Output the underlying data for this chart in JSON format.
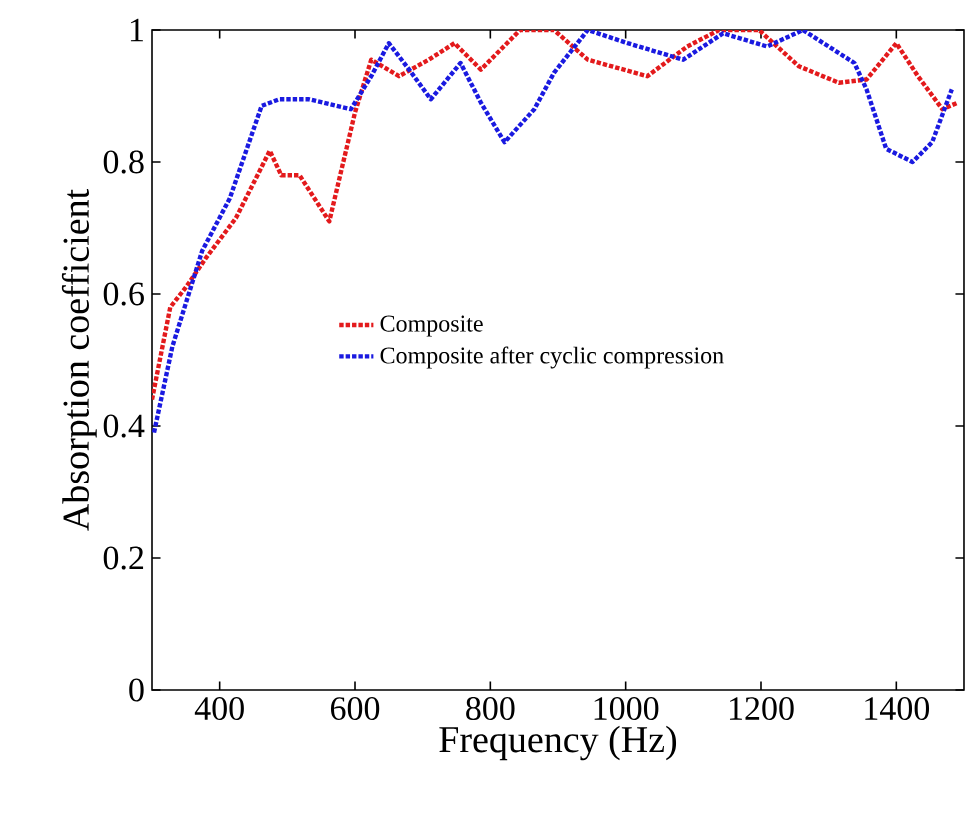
{
  "chart_data": {
    "type": "line",
    "xlabel": "Frequency (Hz)",
    "ylabel": "Absorption coefficient",
    "xlim": [
      300,
      1500
    ],
    "xticks": [
      400,
      600,
      800,
      1000,
      1200,
      1400
    ],
    "ylim": [
      0,
      1
    ],
    "yticks": [
      0,
      0.2,
      0.4,
      0.6,
      0.8,
      1
    ],
    "grid": false,
    "legend": "center",
    "line_style": "dotted",
    "marker": "none",
    "series": [
      {
        "name": "Composite",
        "color": "#e31a1c",
        "x": [
          300,
          327,
          350,
          380,
          424,
          474,
          491,
          518,
          562,
          600,
          624,
          665,
          709,
          747,
          786,
          844,
          894,
          944,
          1032,
          1091,
          1138,
          1197,
          1256,
          1315,
          1356,
          1400,
          1432,
          1468,
          1491
        ],
        "values": [
          0.44,
          0.58,
          0.61,
          0.655,
          0.715,
          0.817,
          0.78,
          0.78,
          0.71,
          0.875,
          0.955,
          0.93,
          0.955,
          0.98,
          0.94,
          1.0,
          1.0,
          0.955,
          0.93,
          0.975,
          1.0,
          1.0,
          0.945,
          0.92,
          0.925,
          0.98,
          0.93,
          0.88,
          0.89
        ]
      },
      {
        "name": "Composite after cyclic compression",
        "color": "#1a1ae0",
        "x": [
          303,
          330,
          374,
          415,
          462,
          488,
          532,
          594,
          624,
          650,
          680,
          712,
          756,
          786,
          821,
          865,
          894,
          944,
          1003,
          1085,
          1144,
          1209,
          1262,
          1338,
          1356,
          1385,
          1424,
          1453,
          1482
        ],
        "values": [
          0.39,
          0.52,
          0.665,
          0.745,
          0.885,
          0.895,
          0.895,
          0.88,
          0.93,
          0.98,
          0.94,
          0.895,
          0.95,
          0.89,
          0.83,
          0.88,
          0.935,
          1.0,
          0.98,
          0.955,
          0.995,
          0.975,
          1.0,
          0.95,
          0.91,
          0.82,
          0.8,
          0.83,
          0.91
        ]
      }
    ]
  }
}
